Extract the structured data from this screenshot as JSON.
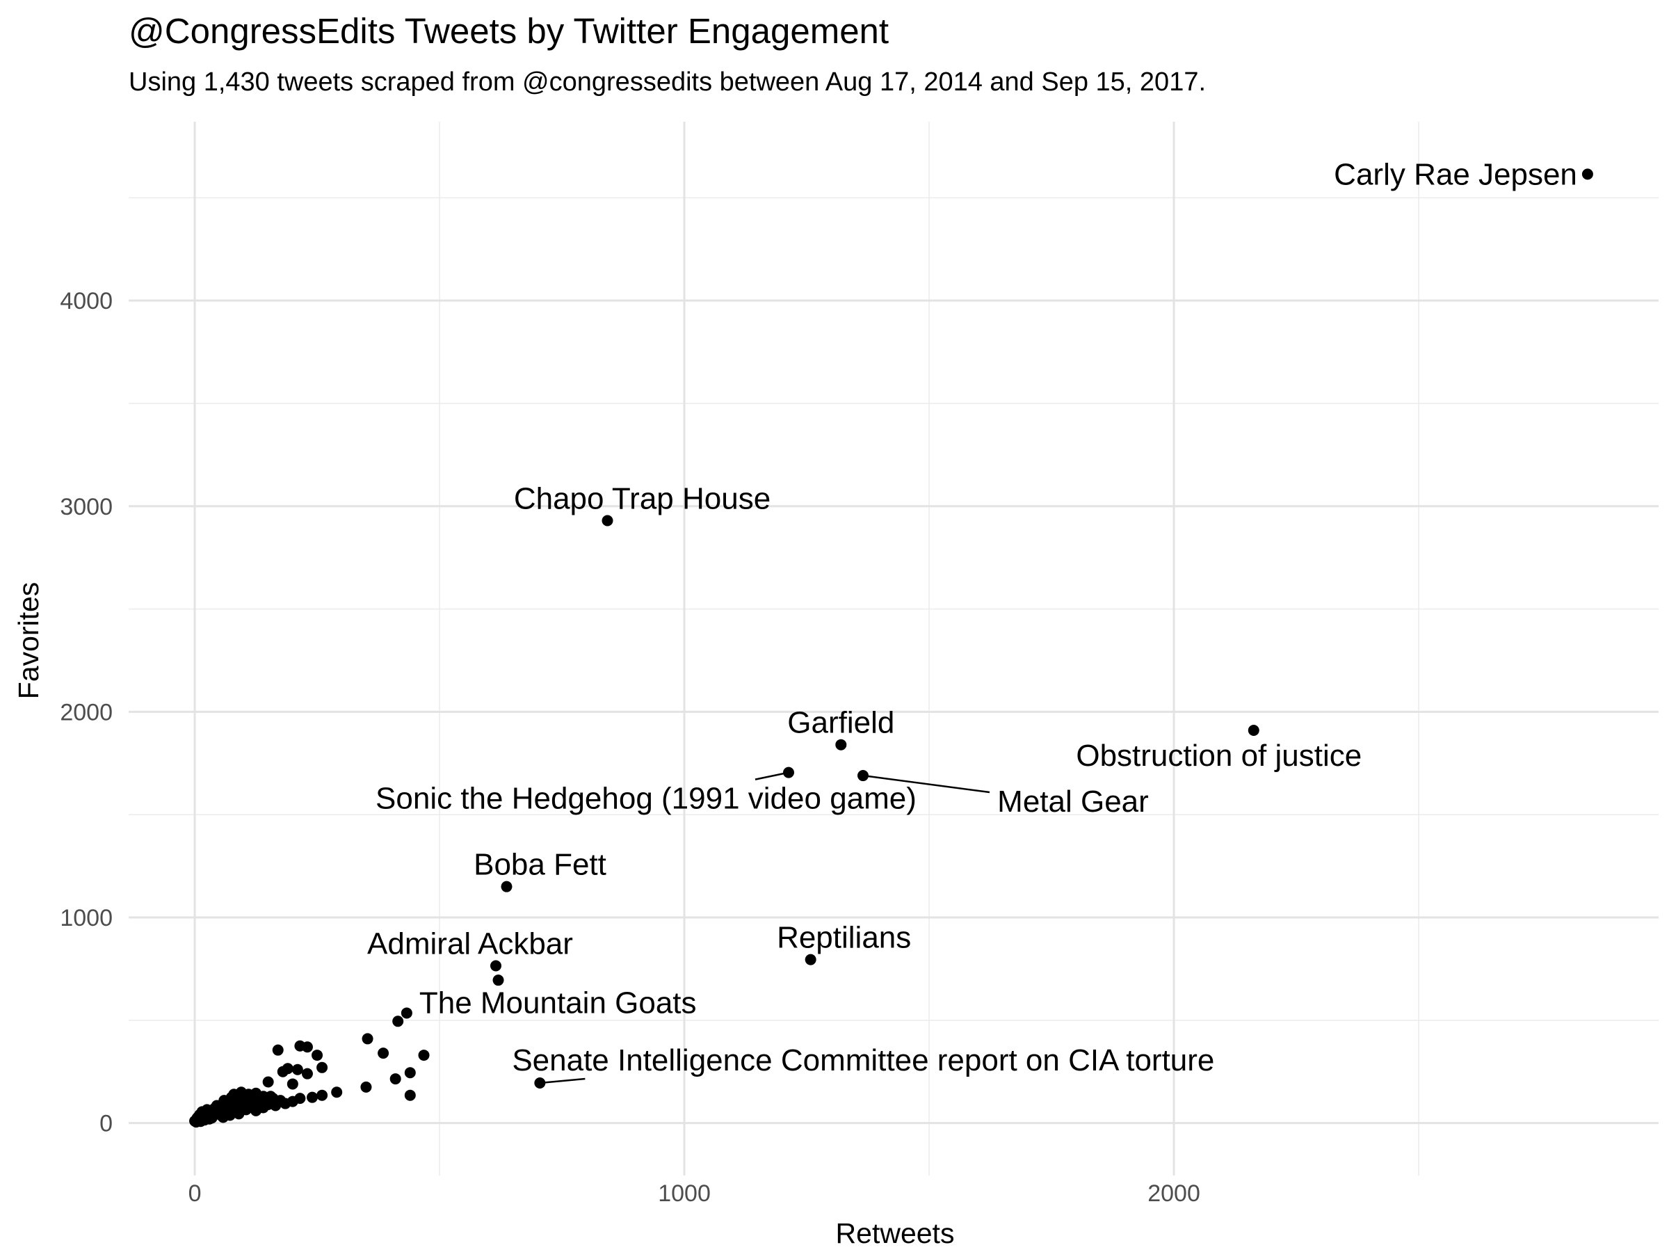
{
  "chart_data": {
    "type": "scatter",
    "title": "@CongressEdits Tweets by Twitter Engagement",
    "subtitle": "Using 1,430 tweets scraped from @congressedits between Aug 17, 2014 and Sep 15, 2017.",
    "xlabel": "Retweets",
    "ylabel": "Favorites",
    "xlim": [
      -135,
      2990
    ],
    "ylim": [
      -255,
      4870
    ],
    "x_ticks": [
      0,
      1000,
      2000
    ],
    "x_tick_labels": [
      "0",
      "1000",
      "2000"
    ],
    "y_ticks": [
      0,
      1000,
      2000,
      3000,
      4000
    ],
    "y_tick_labels": [
      "0",
      "1000",
      "2000",
      "3000",
      "4000"
    ],
    "grid": true,
    "legend": "none",
    "labeled_points": [
      {
        "label": "Carly Rae Jepsen",
        "x": 2845,
        "y": 4615
      },
      {
        "label": "Chapo Trap House",
        "x": 843,
        "y": 2930
      },
      {
        "label": "Obstruction of justice",
        "x": 2163,
        "y": 1910
      },
      {
        "label": "Garfield",
        "x": 1320,
        "y": 1840
      },
      {
        "label": "Sonic the Hedgehog (1991 video game)",
        "x": 1213,
        "y": 1705
      },
      {
        "label": "Metal Gear",
        "x": 1365,
        "y": 1690
      },
      {
        "label": "Boba Fett",
        "x": 637,
        "y": 1150
      },
      {
        "label": "Reptilians",
        "x": 1258,
        "y": 795
      },
      {
        "label": "Admiral Ackbar",
        "x": 615,
        "y": 765
      },
      {
        "label": "The Mountain Goats",
        "x": 433,
        "y": 535
      },
      {
        "label": "Senate Intelligence Committee report on CIA torture",
        "x": 705,
        "y": 195
      }
    ],
    "points": [
      [
        620,
        695
      ],
      [
        415,
        495
      ],
      [
        353,
        410
      ],
      [
        170,
        355
      ],
      [
        215,
        375
      ],
      [
        230,
        370
      ],
      [
        250,
        330
      ],
      [
        385,
        340
      ],
      [
        468,
        330
      ],
      [
        260,
        270
      ],
      [
        190,
        265
      ],
      [
        210,
        260
      ],
      [
        180,
        250
      ],
      [
        230,
        240
      ],
      [
        200,
        190
      ],
      [
        150,
        200
      ],
      [
        410,
        215
      ],
      [
        440,
        245
      ],
      [
        440,
        135
      ],
      [
        350,
        175
      ],
      [
        290,
        150
      ],
      [
        260,
        135
      ],
      [
        240,
        125
      ],
      [
        215,
        120
      ],
      [
        155,
        130
      ],
      [
        125,
        145
      ],
      [
        110,
        140
      ],
      [
        95,
        115
      ],
      [
        85,
        90
      ],
      [
        70,
        100
      ],
      [
        60,
        110
      ],
      [
        75,
        125
      ],
      [
        50,
        80
      ],
      [
        40,
        70
      ],
      [
        25,
        65
      ],
      [
        15,
        55
      ],
      [
        10,
        40
      ],
      [
        5,
        25
      ],
      [
        0,
        10
      ],
      [
        3,
        5
      ],
      [
        8,
        15
      ],
      [
        20,
        30
      ],
      [
        30,
        20
      ],
      [
        45,
        45
      ],
      [
        55,
        35
      ],
      [
        65,
        55
      ],
      [
        80,
        60
      ],
      [
        90,
        75
      ],
      [
        100,
        90
      ],
      [
        115,
        100
      ],
      [
        130,
        95
      ],
      [
        140,
        75
      ],
      [
        150,
        90
      ],
      [
        165,
        85
      ],
      [
        175,
        110
      ],
      [
        95,
        150
      ],
      [
        80,
        140
      ],
      [
        60,
        90
      ],
      [
        40,
        40
      ],
      [
        20,
        15
      ],
      [
        12,
        8
      ],
      [
        35,
        25
      ],
      [
        50,
        55
      ],
      [
        70,
        70
      ],
      [
        105,
        65
      ],
      [
        120,
        80
      ],
      [
        145,
        110
      ],
      [
        160,
        120
      ],
      [
        185,
        95
      ],
      [
        200,
        105
      ],
      [
        30,
        50
      ],
      [
        45,
        85
      ],
      [
        88,
        120
      ],
      [
        102,
        130
      ],
      [
        118,
        115
      ],
      [
        140,
        130
      ],
      [
        125,
        60
      ],
      [
        110,
        85
      ],
      [
        90,
        45
      ],
      [
        72,
        38
      ],
      [
        58,
        28
      ],
      [
        18,
        22
      ],
      [
        25,
        38
      ],
      [
        7,
        30
      ],
      [
        14,
        12
      ],
      [
        38,
        60
      ],
      [
        52,
        65
      ],
      [
        66,
        78
      ],
      [
        84,
        102
      ],
      [
        98,
        108
      ]
    ]
  }
}
